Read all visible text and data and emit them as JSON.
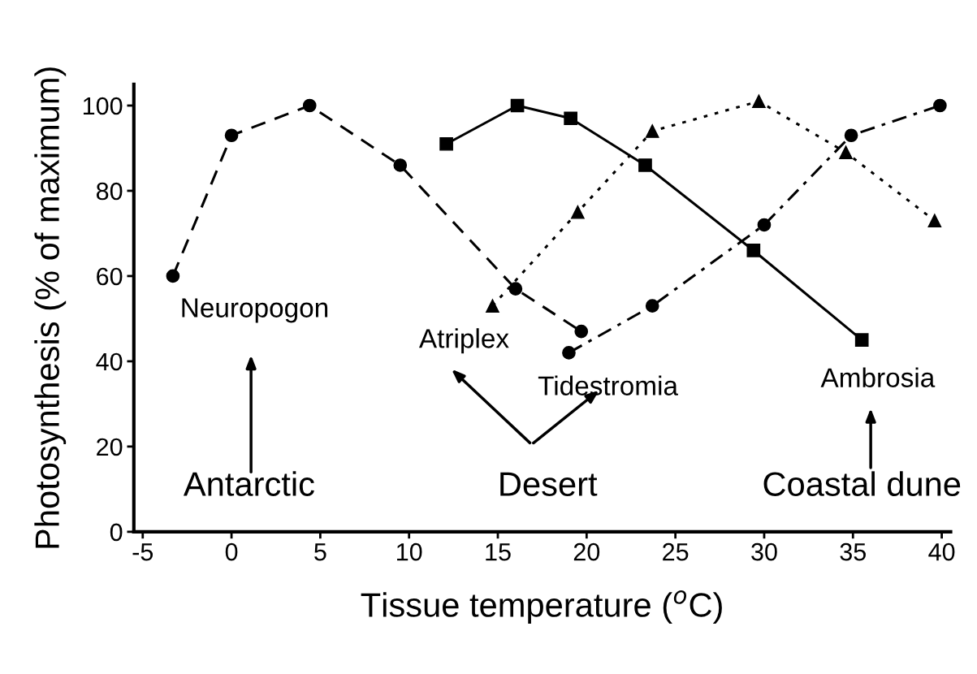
{
  "chart_data": {
    "type": "line",
    "xlabel": "Tissue temperature ($^{o}$C)",
    "ylabel": "Photosynthesis (% of maximum)",
    "xlim": [
      -5.5,
      40.5
    ],
    "xticks": [
      -5,
      0,
      5,
      10,
      15,
      20,
      25,
      30,
      35,
      40
    ],
    "ylim": [
      0,
      105
    ],
    "yticks": [
      0,
      20,
      40,
      60,
      80,
      100
    ],
    "grid": false,
    "legend": false,
    "series": [
      {
        "name": "Neuropogon",
        "color": "#000000",
        "marker": "circle",
        "line_style": "dashed",
        "x": [
          -3.3,
          0,
          4.4,
          9.5,
          16.0,
          19.7
        ],
        "values": [
          60,
          93,
          100,
          86,
          57,
          47
        ]
      },
      {
        "name": "Atriplex",
        "color": "#000000",
        "marker": "triangle",
        "line_style": "dotted",
        "x": [
          14.7,
          19.5,
          23.7,
          29.7,
          34.6,
          39.6
        ],
        "values": [
          53,
          75,
          94,
          101,
          89,
          73
        ]
      },
      {
        "name": "Tidestromia",
        "color": "#000000",
        "marker": "circle",
        "line_style": "dashdot",
        "x": [
          19.0,
          23.7,
          30.0,
          34.9,
          39.9
        ],
        "values": [
          42,
          53,
          72,
          93,
          100
        ]
      },
      {
        "name": "Ambrosia",
        "color": "#000000",
        "marker": "square",
        "line_style": "solid",
        "x": [
          12.1,
          16.1,
          19.1,
          23.3,
          29.4,
          35.5
        ],
        "values": [
          91,
          100,
          97,
          86,
          66,
          45
        ]
      }
    ],
    "annotations": [
      "Antarctic",
      "Desert",
      "Coastal dune"
    ]
  }
}
